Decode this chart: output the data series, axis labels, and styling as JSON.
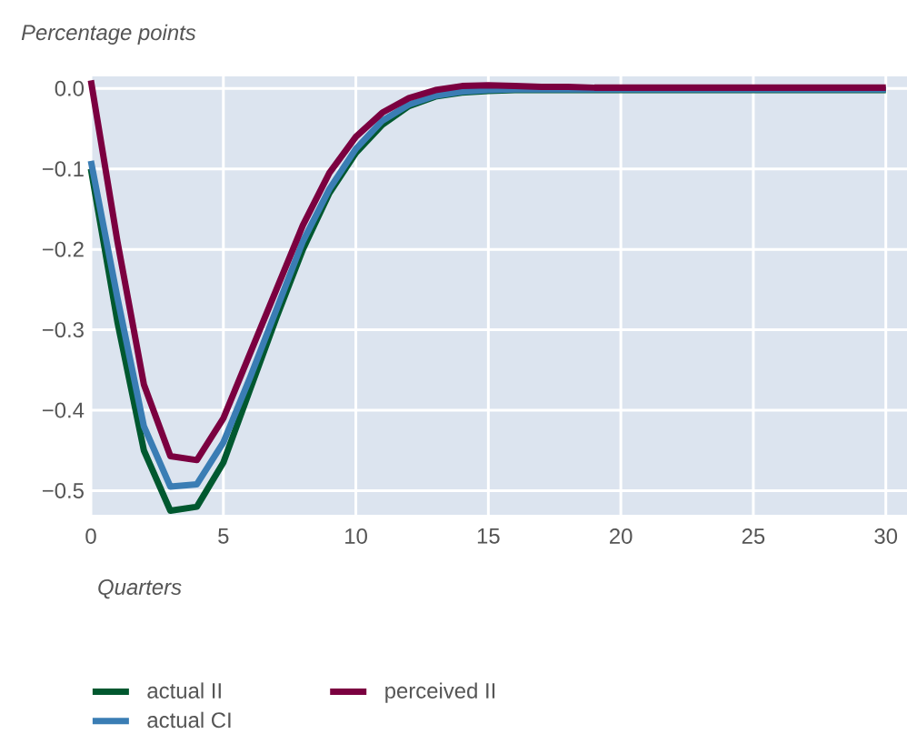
{
  "chart_data": {
    "type": "line",
    "xlabel": "Quarters",
    "ylabel": "Percentage points",
    "x": [
      0,
      1,
      2,
      3,
      4,
      5,
      6,
      7,
      8,
      9,
      10,
      11,
      12,
      13,
      14,
      15,
      16,
      17,
      18,
      19,
      20,
      21,
      22,
      23,
      24,
      25,
      26,
      27,
      28,
      29,
      30
    ],
    "series": [
      {
        "name": "actual II",
        "color": "#00582f",
        "values": [
          -0.1,
          -0.29,
          -0.45,
          -0.525,
          -0.52,
          -0.465,
          -0.375,
          -0.285,
          -0.2,
          -0.13,
          -0.08,
          -0.045,
          -0.022,
          -0.01,
          -0.005,
          -0.003,
          -0.002,
          -0.002,
          -0.002,
          -0.002,
          -0.002,
          -0.002,
          -0.002,
          -0.002,
          -0.002,
          -0.002,
          -0.002,
          -0.002,
          -0.002,
          -0.002,
          -0.002
        ]
      },
      {
        "name": "actual CI",
        "color": "#3a7db4",
        "values": [
          -0.09,
          -0.26,
          -0.42,
          -0.495,
          -0.492,
          -0.44,
          -0.36,
          -0.275,
          -0.19,
          -0.125,
          -0.075,
          -0.04,
          -0.02,
          -0.009,
          -0.004,
          -0.002,
          -0.001,
          -0.001,
          -0.001,
          -0.001,
          -0.001,
          -0.001,
          -0.001,
          -0.001,
          -0.001,
          -0.001,
          -0.001,
          -0.001,
          -0.001,
          -0.001,
          -0.001
        ]
      },
      {
        "name": "perceived II",
        "color": "#7b0040",
        "values": [
          0.01,
          -0.19,
          -0.368,
          -0.457,
          -0.462,
          -0.41,
          -0.33,
          -0.25,
          -0.17,
          -0.105,
          -0.06,
          -0.03,
          -0.012,
          -0.002,
          0.003,
          0.004,
          0.003,
          0.002,
          0.002,
          0.001,
          0.001,
          0.001,
          0.001,
          0.001,
          0.001,
          0.001,
          0.001,
          0.001,
          0.001,
          0.001,
          0.001
        ]
      }
    ],
    "xlim": [
      0,
      30.8
    ],
    "ylim": [
      -0.53,
      0.015
    ],
    "xticks": [
      0,
      5,
      10,
      15,
      20,
      25,
      30
    ],
    "yticks": [
      {
        "value": -0.5,
        "label": "−0.5"
      },
      {
        "value": -0.4,
        "label": "−0.4"
      },
      {
        "value": -0.3,
        "label": "−0.3"
      },
      {
        "value": -0.2,
        "label": "−0.2"
      },
      {
        "value": -0.1,
        "label": "−0.1"
      },
      {
        "value": 0.0,
        "label": "0.0"
      }
    ],
    "grid": true,
    "legend": "bottom",
    "marker": "none",
    "line_style": "solid"
  }
}
